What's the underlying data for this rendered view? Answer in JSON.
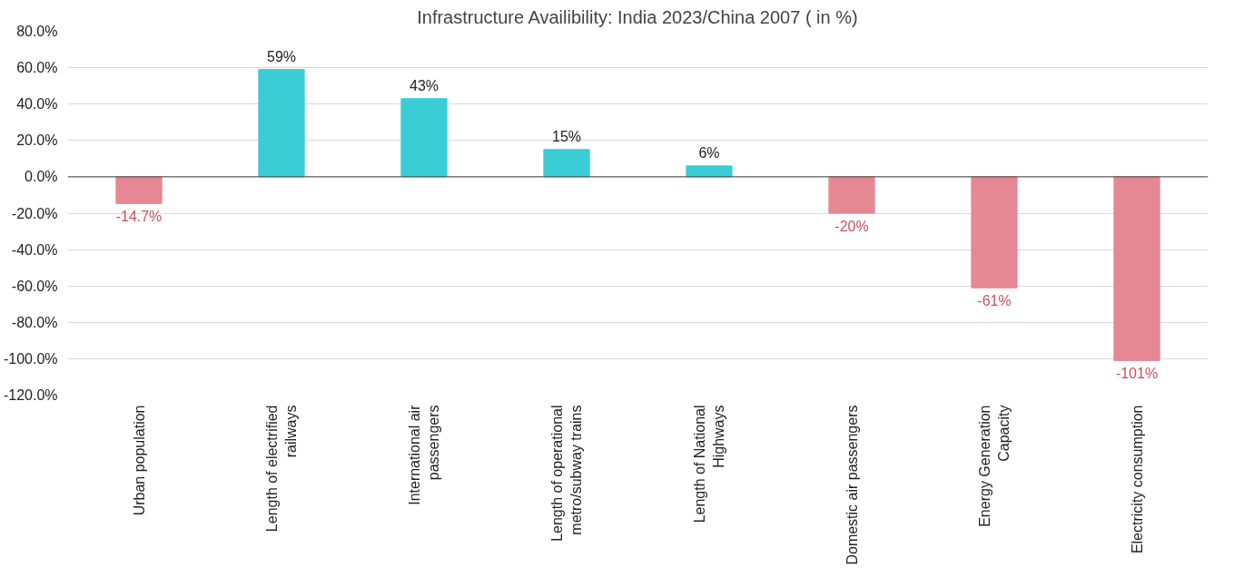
{
  "chart_data": {
    "type": "bar",
    "title": "Infrastructure Availibility: India 2023/China 2007 ( in %)",
    "categories": [
      "Urban population",
      "Length of electrified railways",
      "International air passengers",
      "Length of operational metro/subway trains",
      "Length of National Highways",
      "Domestic air passengers",
      "Energy Generation Capacity",
      "Electricity consumption"
    ],
    "values": [
      -14.7,
      59,
      43,
      15,
      6,
      -20,
      -61,
      -101
    ],
    "colors": [
      "#e58893",
      "#3bcdd6",
      "#3bcdd6",
      "#3bcdd6",
      "#3bcdd6",
      "#e58893",
      "#e58893",
      "#e58893"
    ],
    "value_labels": [
      "-14.7%",
      "59%",
      "43%",
      "15%",
      "6%",
      "-20%",
      "-61%",
      "-101%"
    ],
    "ylim": [
      -120,
      80
    ],
    "yticks": [
      {
        "value": -120,
        "label": "-120.0%"
      },
      {
        "value": -100,
        "label": "-100.0%"
      },
      {
        "value": -80,
        "label": "-80.0%"
      },
      {
        "value": -60,
        "label": "-60.0%"
      },
      {
        "value": -40,
        "label": "-40.0%"
      },
      {
        "value": -20,
        "label": "-20.0%"
      },
      {
        "value": 0,
        "label": "0.0%"
      },
      {
        "value": 20,
        "label": "20.0%"
      },
      {
        "value": 40,
        "label": "40.0%"
      },
      {
        "value": 60,
        "label": "60.0%"
      },
      {
        "value": 80,
        "label": "80.0%"
      }
    ],
    "grid": "y"
  }
}
